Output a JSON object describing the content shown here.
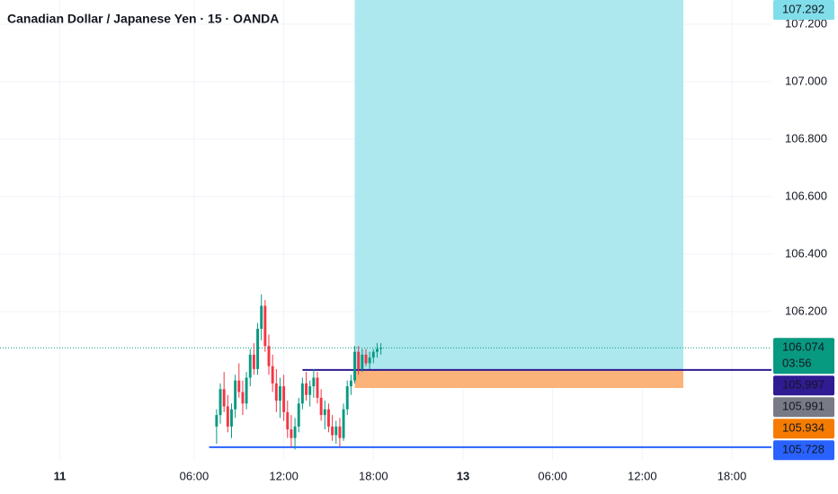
{
  "chart_data": {
    "type": "candlestick",
    "title": "Canadian Dollar / Japanese Yen · 15 · OANDA",
    "x": [
      42,
      43,
      44,
      45,
      46,
      47,
      48,
      49,
      50,
      51,
      52,
      53,
      54,
      55,
      56,
      57,
      58,
      59,
      60,
      61,
      62,
      63,
      64,
      65,
      66,
      67,
      68,
      69,
      70,
      71,
      72,
      73,
      74,
      75,
      76,
      77,
      78,
      79,
      80,
      81,
      82,
      83,
      84,
      85,
      86
    ],
    "open": [
      105.8,
      105.84,
      105.93,
      105.87,
      105.8,
      105.86,
      105.96,
      105.92,
      105.88,
      105.97,
      106.05,
      106.0,
      106.14,
      106.22,
      106.08,
      106.01,
      105.95,
      105.89,
      105.94,
      105.85,
      105.79,
      105.76,
      105.8,
      105.88,
      105.95,
      105.91,
      105.94,
      105.97,
      105.9,
      105.84,
      105.86,
      105.8,
      105.77,
      105.8,
      105.76,
      105.86,
      105.94,
      105.96,
      106.06,
      106.0,
      106.05,
      106.02,
      106.04,
      106.06,
      106.07
    ],
    "high": [
      105.86,
      105.95,
      105.99,
      105.91,
      105.88,
      105.98,
      106.02,
      105.96,
      105.99,
      106.07,
      106.09,
      106.16,
      106.26,
      106.24,
      106.12,
      106.05,
      106.0,
      105.97,
      105.98,
      105.89,
      105.84,
      105.83,
      105.9,
      105.97,
      105.99,
      105.96,
      106.0,
      105.99,
      105.93,
      105.89,
      105.88,
      105.84,
      105.82,
      105.83,
      105.88,
      105.96,
      105.98,
      106.08,
      106.08,
      106.07,
      106.07,
      106.06,
      106.07,
      106.09,
      106.09
    ],
    "low": [
      105.74,
      105.81,
      105.85,
      105.78,
      105.76,
      105.83,
      105.9,
      105.84,
      105.86,
      105.94,
      105.98,
      105.98,
      106.1,
      106.06,
      105.98,
      105.92,
      105.85,
      105.83,
      105.82,
      105.76,
      105.73,
      105.72,
      105.78,
      105.86,
      105.89,
      105.87,
      105.9,
      105.88,
      105.82,
      105.79,
      105.78,
      105.75,
      105.74,
      105.73,
      105.75,
      105.84,
      105.91,
      105.95,
      105.98,
      105.99,
      106.01,
      106.0,
      106.02,
      106.04,
      106.05
    ],
    "close": [
      105.84,
      105.93,
      105.87,
      105.8,
      105.86,
      105.96,
      105.92,
      105.88,
      105.97,
      106.05,
      106.0,
      106.14,
      106.22,
      106.08,
      106.01,
      105.95,
      105.89,
      105.94,
      105.85,
      105.79,
      105.76,
      105.8,
      105.88,
      105.95,
      105.91,
      105.94,
      105.97,
      105.9,
      105.84,
      105.86,
      105.8,
      105.77,
      105.8,
      105.76,
      105.86,
      105.94,
      105.96,
      106.06,
      106.0,
      106.05,
      106.02,
      106.04,
      106.06,
      106.07,
      106.074
    ],
    "up_color": "#089981",
    "down_color": "#f23645",
    "xlim": [
      -16,
      190.6
    ],
    "xticks": [
      {
        "value": 0,
        "label": "11"
      },
      {
        "value": 36,
        "label": "06:00"
      },
      {
        "value": 60,
        "label": "12:00"
      },
      {
        "value": 84,
        "label": "18:00"
      },
      {
        "value": 108,
        "label": "13"
      },
      {
        "value": 132,
        "label": "06:00"
      },
      {
        "value": 156,
        "label": "12:00"
      },
      {
        "value": 180,
        "label": "18:00"
      }
    ],
    "ylim": [
      105.684,
      107.284
    ],
    "yticks": [
      {
        "value": 106.2,
        "label": "106.200"
      },
      {
        "value": 106.4,
        "label": "106.400"
      },
      {
        "value": 106.6,
        "label": "106.600"
      },
      {
        "value": 106.8,
        "label": "106.800"
      },
      {
        "value": 107.0,
        "label": "107.000"
      },
      {
        "value": 107.2,
        "label": "107.200"
      }
    ],
    "grid": true,
    "position": {
      "start": 79,
      "end": 167,
      "entry": 105.997,
      "target": 107.292,
      "stop": 105.934,
      "profit_color": "#ade8ef",
      "loss_color": "#fbb37a"
    },
    "price_lines": [
      {
        "value": 105.997,
        "start": 65,
        "color": "#311b92"
      },
      {
        "value": 105.728,
        "start": 40,
        "color": "#2962ff"
      }
    ],
    "price_labels": [
      {
        "value": 107.292,
        "color": "#80deea"
      },
      {
        "value": 106.074,
        "color": "#089981",
        "countdown": "03:56"
      },
      {
        "value": 105.997,
        "color": "#311b92"
      },
      {
        "value": 105.991,
        "color": "#787b86"
      },
      {
        "value": 105.934,
        "color": "#f57c00"
      },
      {
        "value": 105.728,
        "color": "#2962ff"
      }
    ]
  }
}
